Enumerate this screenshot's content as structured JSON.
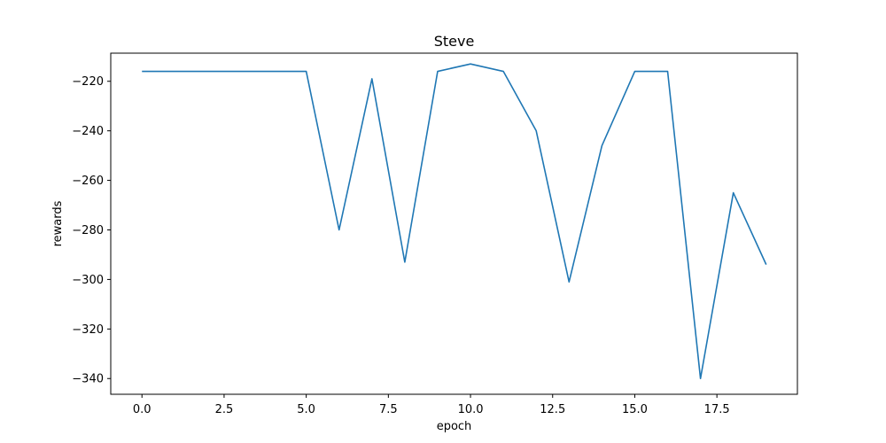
{
  "chart_data": {
    "type": "line",
    "title": "Steve",
    "xlabel": "epoch",
    "ylabel": "rewards",
    "xlim": [
      -0.95,
      19.95
    ],
    "ylim": [
      -346.35,
      -208.65
    ],
    "xticks": [
      0.0,
      2.5,
      5.0,
      7.5,
      10.0,
      12.5,
      15.0,
      17.5
    ],
    "xtick_labels": [
      "0.0",
      "2.5",
      "5.0",
      "7.5",
      "10.0",
      "12.5",
      "15.0",
      "17.5"
    ],
    "yticks": [
      -220,
      -240,
      -260,
      -280,
      -300,
      -320,
      -340
    ],
    "ytick_labels": [
      "−220",
      "−240",
      "−260",
      "−280",
      "−300",
      "−320",
      "−340"
    ],
    "grid": false,
    "legend": "none",
    "series": [
      {
        "color": "#1f77b4",
        "x": [
          0,
          1,
          2,
          3,
          4,
          5,
          6,
          7,
          8,
          9,
          10,
          11,
          12,
          13,
          14,
          15,
          16,
          17,
          18,
          19
        ],
        "y": [
          -216,
          -216,
          -216,
          -216,
          -216,
          -216,
          -280,
          -219,
          -293,
          -216,
          -213,
          -216,
          -240,
          -301,
          -246,
          -216,
          -216,
          -340,
          -265,
          -294
        ]
      }
    ]
  }
}
